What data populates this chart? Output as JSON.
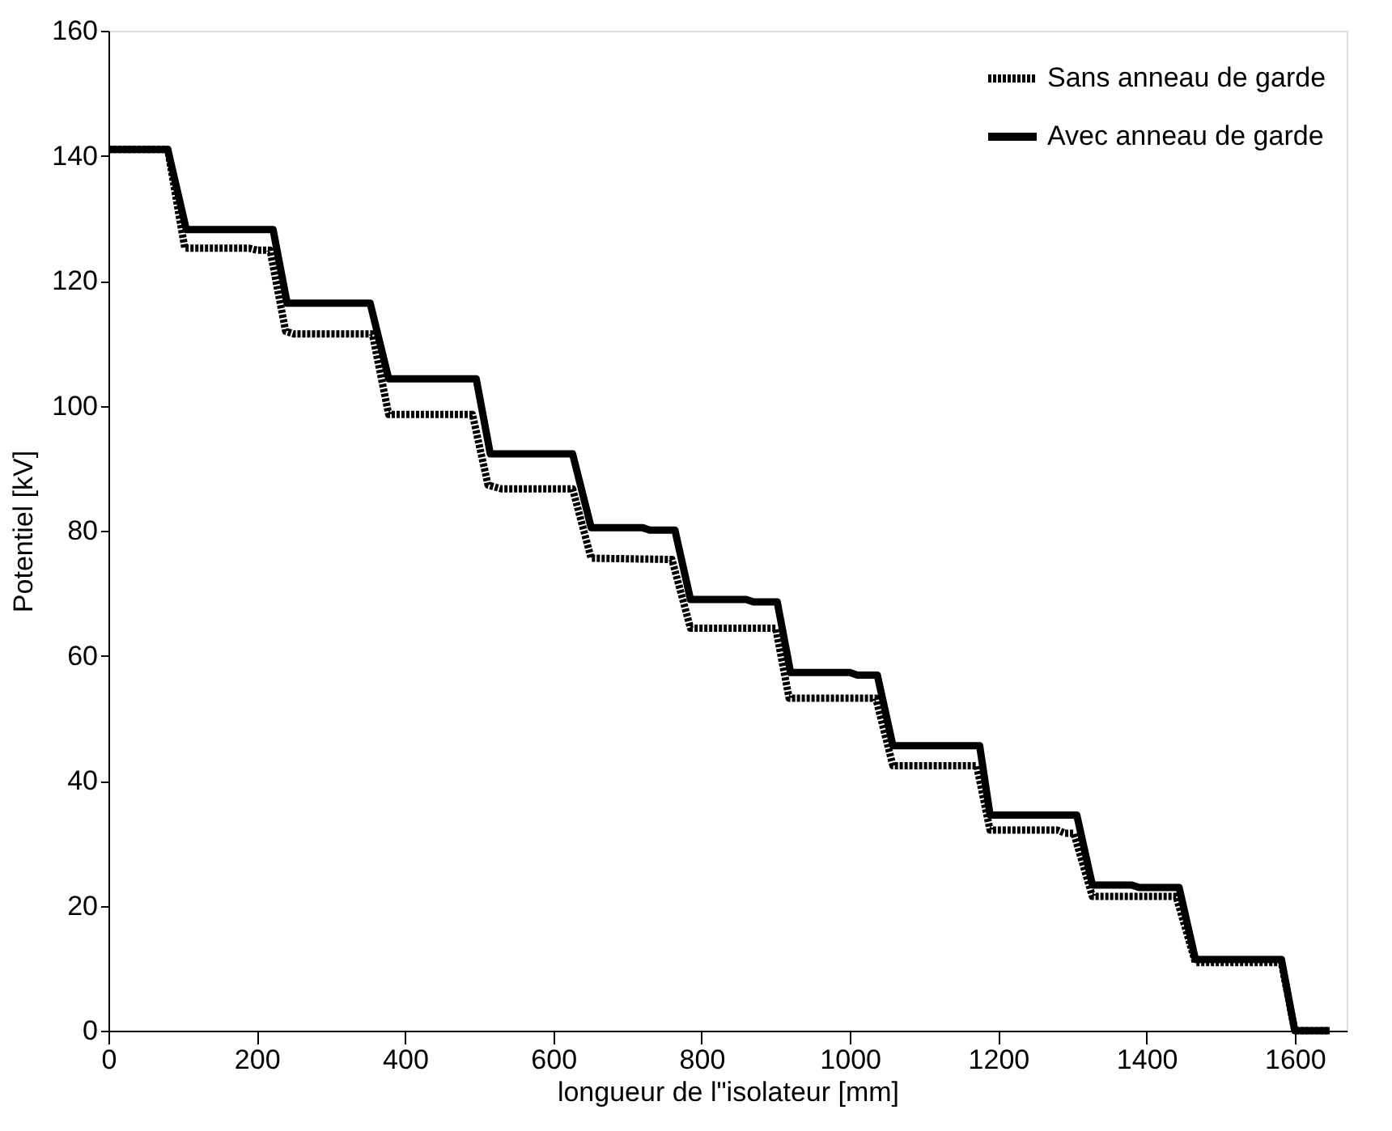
{
  "chart_data": {
    "type": "line",
    "xlabel": "longueur de l\"isolateur [mm]",
    "ylabel": "Potentiel [kV]",
    "xlim": [
      0,
      1670
    ],
    "xticks": [
      0,
      200,
      400,
      600,
      800,
      1000,
      1200,
      1400,
      1600
    ],
    "ylim": [
      0,
      160
    ],
    "yticks": [
      0,
      20,
      40,
      60,
      80,
      100,
      120,
      140,
      160
    ],
    "grid": false,
    "legend": "top right",
    "marker": "none",
    "series": [
      {
        "name": "Sans anneau de garde",
        "color": "#000000",
        "line_style": "dotted",
        "x": [
          0,
          80,
          103,
          190,
          200,
          218,
          239,
          250,
          356,
          378,
          491,
          512,
          530,
          626,
          651,
          760,
          785,
          900,
          918,
          1035,
          1058,
          1171,
          1189,
          1280,
          1290,
          1302,
          1327,
          1440,
          1466,
          1582,
          1600,
          1647
        ],
        "values": [
          141,
          141,
          125.2,
          125.2,
          124.9,
          124.9,
          111.9,
          111.5,
          111.5,
          98.6,
          98.6,
          87.3,
          86.7,
          86.7,
          75.6,
          75.4,
          64.4,
          64.4,
          53.2,
          53.2,
          42.4,
          42.4,
          32.1,
          32.1,
          31.6,
          31.6,
          21.5,
          21.5,
          10.9,
          10.9,
          0,
          0
        ]
      },
      {
        "name": "Avec anneau de garde",
        "color": "#000000",
        "line_style": "solid",
        "x": [
          0,
          80,
          105,
          222,
          241,
          353,
          378,
          496,
          515,
          626,
          651,
          720,
          730,
          764,
          785,
          860,
          870,
          902,
          920,
          1000,
          1010,
          1037,
          1058,
          1175,
          1189,
          1306,
          1327,
          1380,
          1390,
          1444,
          1466,
          1582,
          1600,
          1647
        ],
        "values": [
          141,
          141,
          128.2,
          128.2,
          116.4,
          116.4,
          104.3,
          104.3,
          92.3,
          92.3,
          80.5,
          80.5,
          80.1,
          80.1,
          69.0,
          69.0,
          68.6,
          68.6,
          57.3,
          57.3,
          56.9,
          56.9,
          45.6,
          45.6,
          34.5,
          34.5,
          23.3,
          23.3,
          22.9,
          22.9,
          11.4,
          11.4,
          0,
          0
        ]
      }
    ]
  }
}
